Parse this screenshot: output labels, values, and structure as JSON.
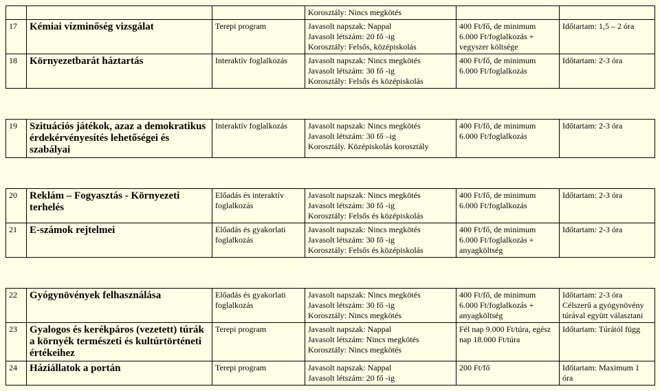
{
  "rows": [
    {
      "num": "",
      "title": "",
      "type": "",
      "details": "Korosztály: Nincs megkötés",
      "price": "",
      "duration": ""
    },
    {
      "num": "17",
      "title": "Kémiai vízminőség vizsgálat",
      "type": "Terepi program",
      "details": "Javasolt napszak: Nappal\nJavasolt létszám: 20 fő -ig\nKorosztály: Felsős, középiskolás",
      "price": "400 Ft/fő, de minimum 6.000 Ft/foglalkozás + vegyszer költsége",
      "duration": "Időtartam: 1,5 – 2 óra"
    },
    {
      "num": "18",
      "title": "Környezetbarát háztartás",
      "type": "Interaktív foglalkozás",
      "details": "Javasolt napszak: Nincs megkötés\nJavasolt létszám: 30 fő -ig\nKorosztály: Felsős és középiskolás",
      "price": "400 Ft/fő, de minimum 6.000 Ft/foglalkozás",
      "duration": "Időtartam: 2-3 óra"
    }
  ],
  "rows2": [
    {
      "num": "19",
      "title": "Szituációs játékok, azaz a demokratikus érdekérvényesítés lehetőségei és szabályai",
      "type": "Interaktív foglalkozás",
      "details": "Javasolt napszak: Nincs megkötés\nJavasolt létszám: 30 fő –ig\nKorosztály. Középiskolás korosztály",
      "price": "400 Ft/fő, de minimum 6.000 Ft/foglalkozás",
      "duration": "Időtartam: 2-3 óra"
    }
  ],
  "rows3": [
    {
      "num": "20",
      "title": "Reklám – Fogyasztás - Környezeti terhelés",
      "type": "Előadás és interaktív foglalkozás",
      "details": "Javasolt napszak: Nincs megkötés\nJavasolt létszám: 30 fő -ig\nKorosztály: Felsős és középiskolás",
      "price": "400 Ft/fő, de minimum 6.000 Ft/foglalkozás",
      "duration": "Időtartam: 2-3 óra"
    },
    {
      "num": "21",
      "title": "E-számok rejtelmei",
      "type": "Előadás és gyakorlati foglalkozás",
      "details": "Javasolt napszak: Nincs megkötés\nJavasolt létszám: 30 fő -ig\nKorosztály: Felsős és középiskolás",
      "price": "400 Ft/fő, de minimum 6.000 Ft/foglalkozás + anyagköltség",
      "duration": "Időtartam: 2-3 óra"
    }
  ],
  "rows4": [
    {
      "num": "22",
      "title": "Gyógynövények felhasználása",
      "type": "Előadás és gyakorlati foglalkozás",
      "details": "Javasolt napszak: Nincs megkötés\nJavasolt létszám: 30 fő -ig\nKorosztály: Nincs megkötés",
      "price": "400 Ft/fő, de minimum 6.000 Ft/foglalkozás + anyagköltség",
      "duration": "Időtartam: 2-3 óra Célszerű a gyógynövény túrával együtt választani"
    },
    {
      "num": "23",
      "title": "Gyalogos és kerékpáros (vezetett) túrák a környék természeti és kultúrtörténeti értékeihez",
      "type": "Terepi program",
      "details": "Javasolt napszak: Nappal\nJavasolt létszám: Nincs megkötés\nKorosztály: Nincs megkötés",
      "price": "Fél nap 9.000 Ft/túra, egész nap 18.000 Ft/túra",
      "duration": "Időtartam: Túrától függ"
    },
    {
      "num": "24",
      "title": "Háziállatok a portán",
      "type": "Terepi program",
      "details": "Javasolt napszak: Nappal\nJavasolt létszám: 20 fő -ig",
      "price": "200 Ft/fő",
      "duration": "Időtartam: Maximum 1 óra"
    }
  ]
}
